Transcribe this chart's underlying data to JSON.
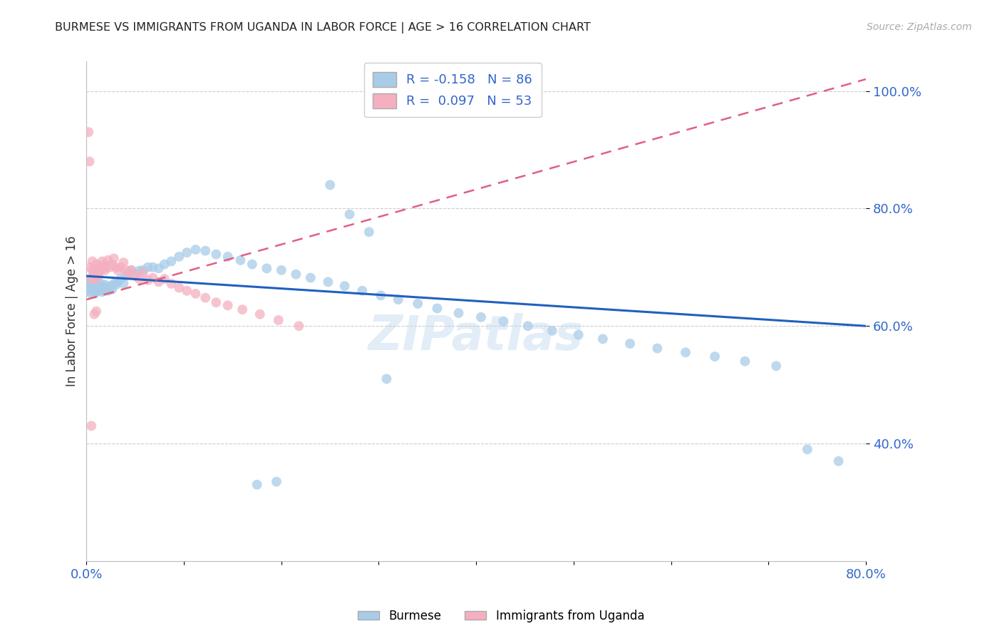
{
  "title": "BURMESE VS IMMIGRANTS FROM UGANDA IN LABOR FORCE | AGE > 16 CORRELATION CHART",
  "source": "Source: ZipAtlas.com",
  "ylabel": "In Labor Force | Age > 16",
  "legend_blue_label": "Burmese",
  "legend_pink_label": "Immigrants from Uganda",
  "R_blue": -0.158,
  "N_blue": 86,
  "R_pink": 0.097,
  "N_pink": 53,
  "xlim": [
    0.0,
    0.8
  ],
  "ylim": [
    0.2,
    1.05
  ],
  "yticks": [
    0.4,
    0.6,
    0.8,
    1.0
  ],
  "ytick_labels": [
    "40.0%",
    "60.0%",
    "80.0%",
    "100.0%"
  ],
  "xticks": [
    0.0,
    0.1,
    0.2,
    0.3,
    0.4,
    0.5,
    0.6,
    0.7,
    0.8
  ],
  "xtick_labels": [
    "0.0%",
    "",
    "",
    "",
    "",
    "",
    "",
    "",
    "80.0%"
  ],
  "blue_color": "#a8cce8",
  "pink_color": "#f4b0c0",
  "blue_line_color": "#2060c0",
  "pink_line_color": "#e06080",
  "watermark": "ZIPatlas",
  "blue_line_x0": 0.0,
  "blue_line_y0": 0.685,
  "blue_line_x1": 0.8,
  "blue_line_y1": 0.6,
  "pink_line_x0": 0.0,
  "pink_line_y0": 0.645,
  "pink_line_x1": 0.8,
  "pink_line_y1": 1.02,
  "blue_x": [
    0.002,
    0.003,
    0.004,
    0.004,
    0.005,
    0.005,
    0.006,
    0.006,
    0.007,
    0.007,
    0.008,
    0.008,
    0.009,
    0.009,
    0.01,
    0.01,
    0.011,
    0.012,
    0.012,
    0.013,
    0.014,
    0.015,
    0.016,
    0.017,
    0.018,
    0.019,
    0.02,
    0.022,
    0.024,
    0.026,
    0.028,
    0.03,
    0.032,
    0.035,
    0.038,
    0.04,
    0.043,
    0.046,
    0.05,
    0.054,
    0.058,
    0.063,
    0.068,
    0.074,
    0.08,
    0.087,
    0.095,
    0.103,
    0.112,
    0.122,
    0.133,
    0.145,
    0.158,
    0.17,
    0.185,
    0.2,
    0.215,
    0.23,
    0.248,
    0.265,
    0.283,
    0.302,
    0.32,
    0.34,
    0.36,
    0.382,
    0.405,
    0.428,
    0.453,
    0.478,
    0.505,
    0.53,
    0.558,
    0.586,
    0.615,
    0.645,
    0.676,
    0.708,
    0.74,
    0.772,
    0.25,
    0.27,
    0.29,
    0.308,
    0.195,
    0.175
  ],
  "blue_y": [
    0.665,
    0.67,
    0.66,
    0.68,
    0.655,
    0.675,
    0.66,
    0.68,
    0.66,
    0.675,
    0.655,
    0.668,
    0.66,
    0.674,
    0.658,
    0.672,
    0.668,
    0.66,
    0.672,
    0.665,
    0.668,
    0.672,
    0.658,
    0.666,
    0.66,
    0.67,
    0.665,
    0.66,
    0.668,
    0.662,
    0.672,
    0.67,
    0.675,
    0.68,
    0.672,
    0.685,
    0.69,
    0.695,
    0.688,
    0.694,
    0.695,
    0.7,
    0.7,
    0.698,
    0.705,
    0.71,
    0.718,
    0.725,
    0.73,
    0.728,
    0.722,
    0.718,
    0.712,
    0.705,
    0.698,
    0.695,
    0.688,
    0.682,
    0.675,
    0.668,
    0.66,
    0.652,
    0.645,
    0.638,
    0.63,
    0.622,
    0.615,
    0.608,
    0.6,
    0.592,
    0.585,
    0.578,
    0.57,
    0.562,
    0.555,
    0.548,
    0.54,
    0.532,
    0.39,
    0.37,
    0.84,
    0.79,
    0.76,
    0.51,
    0.335,
    0.33
  ],
  "pink_x": [
    0.002,
    0.003,
    0.004,
    0.005,
    0.006,
    0.006,
    0.007,
    0.008,
    0.009,
    0.01,
    0.01,
    0.011,
    0.012,
    0.013,
    0.014,
    0.015,
    0.016,
    0.017,
    0.018,
    0.019,
    0.02,
    0.022,
    0.024,
    0.026,
    0.028,
    0.03,
    0.032,
    0.035,
    0.038,
    0.04,
    0.043,
    0.046,
    0.05,
    0.054,
    0.058,
    0.063,
    0.068,
    0.074,
    0.08,
    0.087,
    0.095,
    0.103,
    0.112,
    0.122,
    0.133,
    0.145,
    0.16,
    0.178,
    0.197,
    0.218,
    0.008,
    0.01,
    0.005
  ],
  "pink_y": [
    0.93,
    0.88,
    0.7,
    0.68,
    0.695,
    0.71,
    0.688,
    0.695,
    0.68,
    0.69,
    0.705,
    0.698,
    0.685,
    0.692,
    0.7,
    0.695,
    0.71,
    0.698,
    0.705,
    0.695,
    0.7,
    0.712,
    0.7,
    0.705,
    0.715,
    0.7,
    0.695,
    0.7,
    0.708,
    0.695,
    0.688,
    0.695,
    0.685,
    0.68,
    0.69,
    0.678,
    0.682,
    0.675,
    0.68,
    0.672,
    0.665,
    0.66,
    0.655,
    0.648,
    0.64,
    0.635,
    0.628,
    0.62,
    0.61,
    0.6,
    0.62,
    0.625,
    0.43
  ]
}
